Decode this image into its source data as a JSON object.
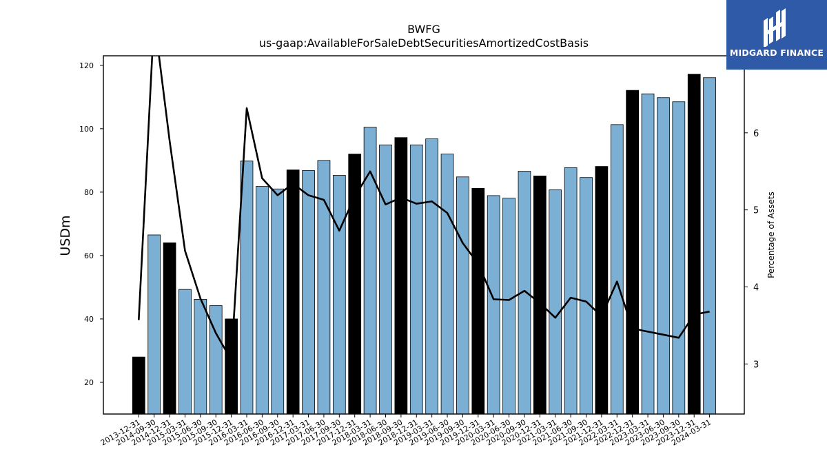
{
  "chart_data": {
    "type": "bar",
    "title": "BWFG",
    "subtitle": "us-gaap:AvailableForSaleDebtSecuritiesAmortizedCostBasis",
    "ylabel": "USDm",
    "y2label": "Percentage of Assets",
    "ylim": [
      10,
      123
    ],
    "y2lim": [
      2.35,
      7.0
    ],
    "yticks": [
      20,
      40,
      60,
      80,
      100,
      120
    ],
    "y2ticks": [
      3,
      4,
      5,
      6
    ],
    "categories": [
      "2013-12-31",
      "2014-09-30",
      "2014-12-31",
      "2015-03-31",
      "2015-06-30",
      "2015-09-30",
      "2015-12-31",
      "2016-03-31",
      "2016-06-30",
      "2016-09-30",
      "2016-12-31",
      "2017-03-31",
      "2017-06-30",
      "2017-09-30",
      "2017-12-31",
      "2018-03-31",
      "2018-06-30",
      "2018-09-30",
      "2018-12-31",
      "2019-03-31",
      "2019-06-30",
      "2019-09-30",
      "2019-12-31",
      "2020-03-31",
      "2020-06-30",
      "2020-09-30",
      "2020-12-31",
      "2021-03-31",
      "2021-06-30",
      "2021-09-30",
      "2021-12-31",
      "2022-03-31",
      "2022-12-31",
      "2023-03-31",
      "2023-06-30",
      "2023-09-30",
      "2023-12-31",
      "2024-03-31"
    ],
    "series": [
      {
        "type": "bar",
        "values": [
          28.0,
          66.5,
          64.0,
          49.3,
          46.2,
          44.2,
          40.0,
          89.8,
          81.8,
          81.0,
          87.0,
          86.8,
          90.0,
          85.3,
          92.0,
          100.5,
          94.9,
          97.2,
          94.9,
          96.8,
          92.0,
          84.8,
          81.2,
          78.9,
          78.1,
          86.6,
          85.1,
          80.7,
          87.7,
          84.6,
          88.1,
          101.3,
          112.1,
          111.0,
          109.8,
          108.5,
          117.2,
          116.1
        ],
        "highlight": [
          true,
          false,
          true,
          false,
          false,
          false,
          true,
          false,
          false,
          false,
          true,
          false,
          false,
          false,
          true,
          false,
          false,
          true,
          false,
          false,
          false,
          false,
          true,
          false,
          false,
          false,
          true,
          false,
          false,
          false,
          true,
          false,
          true,
          false,
          false,
          false,
          true,
          false
        ]
      },
      {
        "type": "line",
        "axis": "right",
        "values": [
          3.57,
          7.5,
          5.9,
          4.47,
          3.85,
          3.4,
          3.05,
          6.32,
          5.41,
          5.19,
          5.34,
          5.19,
          5.13,
          4.73,
          5.17,
          5.5,
          5.07,
          5.16,
          5.08,
          5.11,
          4.96,
          4.57,
          4.3,
          3.84,
          3.83,
          3.95,
          3.79,
          3.6,
          3.86,
          3.81,
          3.62,
          4.07,
          3.46,
          3.42,
          3.38,
          3.34,
          3.64,
          3.68
        ]
      }
    ],
    "colors": {
      "bar": "#7bafd4",
      "bar_highlight": "#000000",
      "line": "#000000"
    }
  },
  "logo": {
    "text": "MIDGARD FINANCE",
    "background": "#2f5aa8"
  }
}
